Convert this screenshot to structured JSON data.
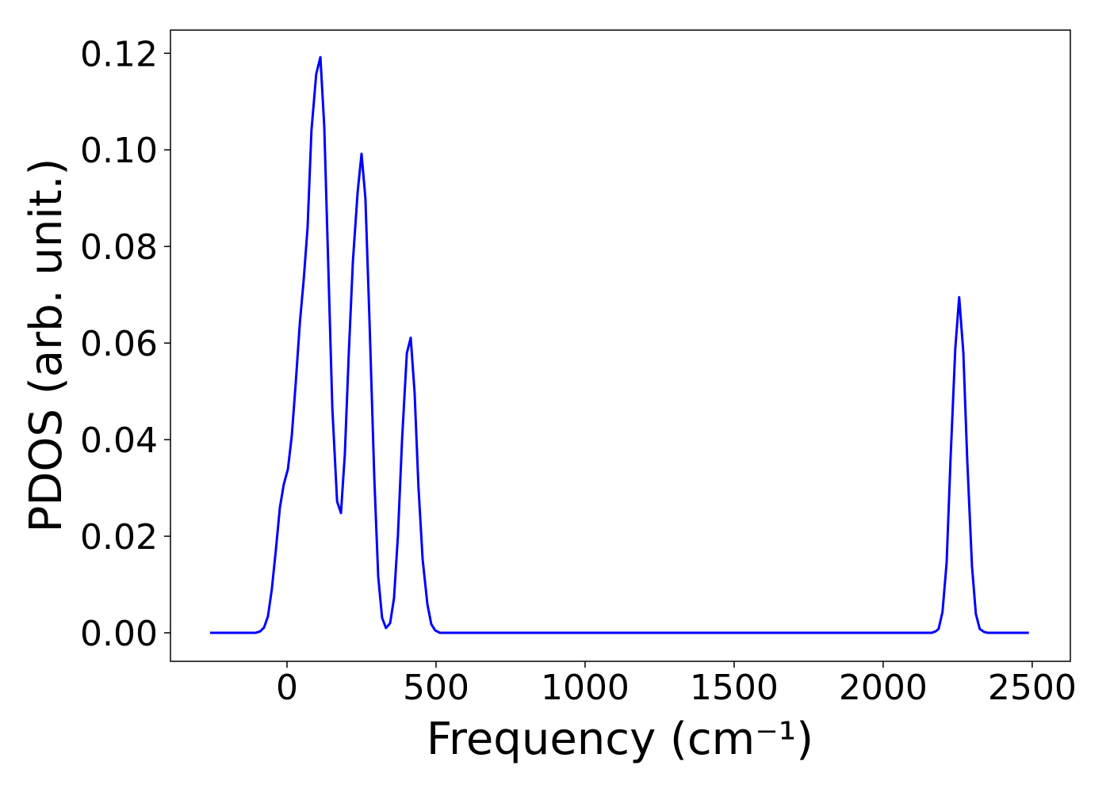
{
  "chart_data": {
    "type": "line",
    "x_label": "Frequency (cm⁻¹)",
    "y_label": "PDOS (arb. unit.)",
    "xlim": [
      -391,
      2628
    ],
    "ylim": [
      -0.0059,
      0.1248
    ],
    "xticks": [
      0,
      500,
      1000,
      1500,
      2000,
      2500
    ],
    "yticks": [
      {
        "value": 0,
        "label": "0.00"
      },
      0.02,
      0.04,
      0.06,
      0.08,
      {
        "value": 0.1,
        "label": "0.10"
      },
      0.12
    ],
    "grid": false,
    "series": [
      {
        "color": "#0000ff",
        "x": [
          -258,
          -106,
          -90,
          -77,
          -64,
          -51,
          -37,
          -24,
          -11,
          3,
          16,
          29,
          43,
          56,
          69,
          82,
          98,
          112,
          125,
          138,
          152,
          168,
          181,
          194,
          207,
          221,
          237,
          250,
          263,
          277,
          293,
          306,
          319,
          332,
          346,
          359,
          372,
          386,
          402,
          415,
          428,
          441,
          455,
          471,
          484,
          497,
          513,
          2162,
          2176,
          2186,
          2199,
          2213,
          2226,
          2242,
          2255,
          2269,
          2282,
          2298,
          2311,
          2324,
          2338,
          2351,
          2489
        ],
        "values": [
          0,
          0,
          0.0003,
          0.0011,
          0.0034,
          0.009,
          0.0174,
          0.0259,
          0.0307,
          0.0339,
          0.0408,
          0.0515,
          0.0641,
          0.0731,
          0.0839,
          0.104,
          0.1157,
          0.1192,
          0.1048,
          0.0769,
          0.0466,
          0.0272,
          0.0248,
          0.037,
          0.0575,
          0.0769,
          0.0913,
          0.0992,
          0.09,
          0.0641,
          0.0318,
          0.0116,
          0.0031,
          0.001,
          0.002,
          0.0072,
          0.02,
          0.04,
          0.0579,
          0.0611,
          0.0498,
          0.0302,
          0.0152,
          0.0059,
          0.0018,
          0.0005,
          0,
          0,
          0.0003,
          0.0008,
          0.0043,
          0.0146,
          0.0359,
          0.0589,
          0.0695,
          0.058,
          0.0359,
          0.0138,
          0.0039,
          0.0008,
          0.0002,
          0,
          0
        ]
      }
    ]
  }
}
